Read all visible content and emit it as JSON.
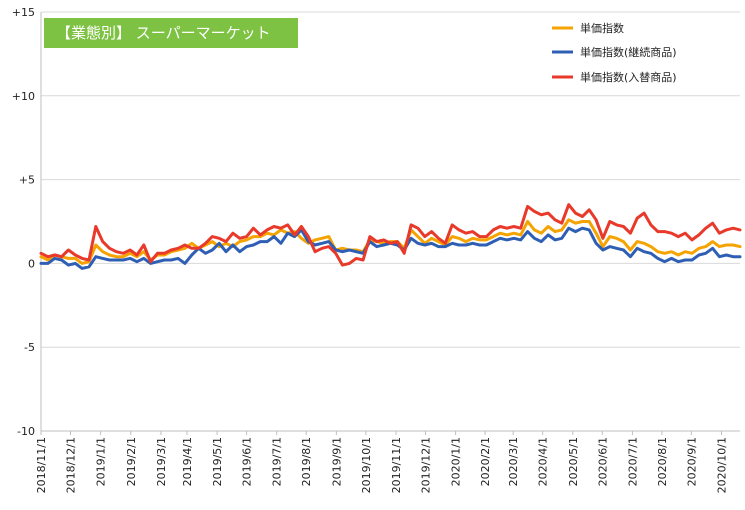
{
  "chart_data": {
    "type": "line",
    "title": "【業態別】 スーパーマーケット",
    "title_bg": "#7dc242",
    "ylim": [
      -10,
      15
    ],
    "yticks": [
      15,
      10,
      5,
      0,
      -5,
      -10
    ],
    "ytick_labels": [
      "+15",
      "+10",
      "+5",
      "0",
      "-5",
      "-10"
    ],
    "grid": true,
    "legend_position": "top-right",
    "x_tick_labels": [
      "2018/11/1",
      "2018/12/1",
      "2019/1/1",
      "2019/2/1",
      "2019/3/1",
      "2019/4/1",
      "2019/5/1",
      "2019/6/1",
      "2019/7/1",
      "2019/8/1",
      "2019/9/1",
      "2019/10/1",
      "2019/11/1",
      "2019/12/1",
      "2020/1/1",
      "2020/2/1",
      "2020/3/1",
      "2020/4/1",
      "2020/5/1",
      "2020/6/1",
      "2020/7/1",
      "2020/8/1",
      "2020/9/1",
      "2020/10/1"
    ],
    "x_tick_positions": [
      0,
      4.3,
      8.7,
      13.1,
      17.5,
      21.3,
      25.7,
      30.0,
      34.4,
      38.7,
      43.1,
      47.4,
      51.8,
      56.1,
      60.5,
      64.8,
      68.9,
      73.2,
      77.6,
      81.9,
      86.3,
      90.6,
      94.9,
      99.3
    ],
    "series": [
      {
        "name": "単価指数",
        "color": "#f5a300",
        "values": [
          0.4,
          0.2,
          0.5,
          0.4,
          0.3,
          0.3,
          0.0,
          0.1,
          1.1,
          0.7,
          0.5,
          0.4,
          0.4,
          0.6,
          0.4,
          0.7,
          0.2,
          0.5,
          0.5,
          0.7,
          0.8,
          0.9,
          1.2,
          0.9,
          1.1,
          1.3,
          1.0,
          1.2,
          1.0,
          1.3,
          1.4,
          1.6,
          1.6,
          1.8,
          1.7,
          2.0,
          1.8,
          1.9,
          1.5,
          1.2,
          1.4,
          1.5,
          1.6,
          0.8,
          0.9,
          0.8,
          0.8,
          0.7,
          1.4,
          1.3,
          1.2,
          1.3,
          1.3,
          0.9,
          2.0,
          1.6,
          1.2,
          1.5,
          1.3,
          1.1,
          1.6,
          1.5,
          1.3,
          1.5,
          1.4,
          1.4,
          1.6,
          1.8,
          1.7,
          1.8,
          1.7,
          2.5,
          2.0,
          1.8,
          2.2,
          1.9,
          2.0,
          2.6,
          2.4,
          2.5,
          2.5,
          1.8,
          1.0,
          1.6,
          1.5,
          1.3,
          0.8,
          1.3,
          1.2,
          1.0,
          0.7,
          0.6,
          0.7,
          0.5,
          0.7,
          0.6,
          0.9,
          1.0,
          1.3,
          1.0,
          1.1,
          1.1,
          1.0
        ],
        "bind_key": "s1"
      },
      {
        "name": "単価指数(継続商品)",
        "color": "#2e5fb4",
        "values": [
          0.0,
          0.0,
          0.3,
          0.2,
          -0.1,
          0.0,
          -0.3,
          -0.2,
          0.4,
          0.3,
          0.2,
          0.2,
          0.2,
          0.3,
          0.1,
          0.3,
          0.0,
          0.1,
          0.2,
          0.2,
          0.3,
          0.0,
          0.5,
          0.9,
          0.6,
          0.8,
          1.2,
          0.7,
          1.1,
          0.7,
          1.0,
          1.1,
          1.3,
          1.3,
          1.6,
          1.2,
          1.8,
          1.6,
          2.0,
          1.3,
          1.1,
          1.2,
          1.3,
          0.8,
          0.7,
          0.8,
          0.7,
          0.6,
          1.3,
          1.0,
          1.1,
          1.2,
          1.1,
          0.8,
          1.5,
          1.2,
          1.1,
          1.2,
          1.0,
          1.0,
          1.2,
          1.1,
          1.1,
          1.2,
          1.1,
          1.1,
          1.3,
          1.5,
          1.4,
          1.5,
          1.4,
          1.9,
          1.5,
          1.3,
          1.7,
          1.4,
          1.5,
          2.1,
          1.9,
          2.1,
          2.0,
          1.2,
          0.8,
          1.0,
          0.9,
          0.8,
          0.4,
          0.9,
          0.7,
          0.6,
          0.3,
          0.1,
          0.3,
          0.1,
          0.2,
          0.2,
          0.5,
          0.6,
          0.9,
          0.4,
          0.5,
          0.4,
          0.4
        ],
        "bind_key": "s2"
      },
      {
        "name": "単価指数(入替商品)",
        "color": "#e8392a",
        "values": [
          0.6,
          0.4,
          0.5,
          0.4,
          0.8,
          0.5,
          0.3,
          0.2,
          2.2,
          1.3,
          0.9,
          0.7,
          0.6,
          0.8,
          0.5,
          1.1,
          0.1,
          0.6,
          0.6,
          0.8,
          0.9,
          1.1,
          0.9,
          0.9,
          1.2,
          1.6,
          1.5,
          1.3,
          1.8,
          1.5,
          1.6,
          2.1,
          1.7,
          2.0,
          2.2,
          2.1,
          2.3,
          1.7,
          2.2,
          1.6,
          0.7,
          0.9,
          1.0,
          0.6,
          -0.1,
          0.0,
          0.3,
          0.2,
          1.6,
          1.3,
          1.4,
          1.2,
          1.3,
          0.6,
          2.3,
          2.1,
          1.6,
          1.9,
          1.5,
          1.2,
          2.3,
          2.0,
          1.8,
          1.9,
          1.6,
          1.6,
          2.0,
          2.2,
          2.1,
          2.2,
          2.1,
          3.4,
          3.1,
          2.9,
          3.0,
          2.6,
          2.4,
          3.5,
          3.0,
          2.8,
          3.2,
          2.6,
          1.5,
          2.5,
          2.3,
          2.2,
          1.8,
          2.7,
          3.0,
          2.3,
          1.9,
          1.9,
          1.8,
          1.6,
          1.8,
          1.4,
          1.7,
          2.1,
          2.4,
          1.8,
          2.0,
          2.1,
          2.0
        ],
        "bind_key": "s3"
      }
    ]
  }
}
